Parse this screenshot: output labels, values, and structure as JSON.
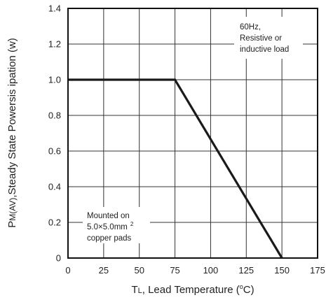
{
  "chart_data": {
    "type": "line",
    "title": "",
    "xlabel_main": "T",
    "xlabel_sub": "L",
    "xlabel_rest": ", Lead Temperature (",
    "xlabel_sup": "o",
    "xlabel_end": "C)",
    "ylabel_main": "P",
    "ylabel_sub": "M(AV)",
    "ylabel_rest": ",Steady State Powersis ipation (w)",
    "xlim": [
      0,
      175
    ],
    "ylim": [
      0,
      1.4
    ],
    "x_ticks": [
      "0",
      "25",
      "50",
      "75",
      "100",
      "125",
      "150",
      "175"
    ],
    "y_ticks": [
      "0",
      "0.2",
      "0.4",
      "0.6",
      "0.8",
      "1.0",
      "1.2",
      "1.4"
    ],
    "grid": true,
    "series": [
      {
        "x": [
          0,
          75,
          150
        ],
        "y": [
          1.0,
          1.0,
          0
        ]
      }
    ],
    "annotations": {
      "top_right": [
        "60Hz,",
        "Resistive or",
        "inductive load"
      ],
      "bottom_left_line1": "Mounted on",
      "bottom_left_line2": "5.0×5.0mm",
      "bottom_left_line2_sup": "2",
      "bottom_left_line3": "copper pads"
    }
  }
}
